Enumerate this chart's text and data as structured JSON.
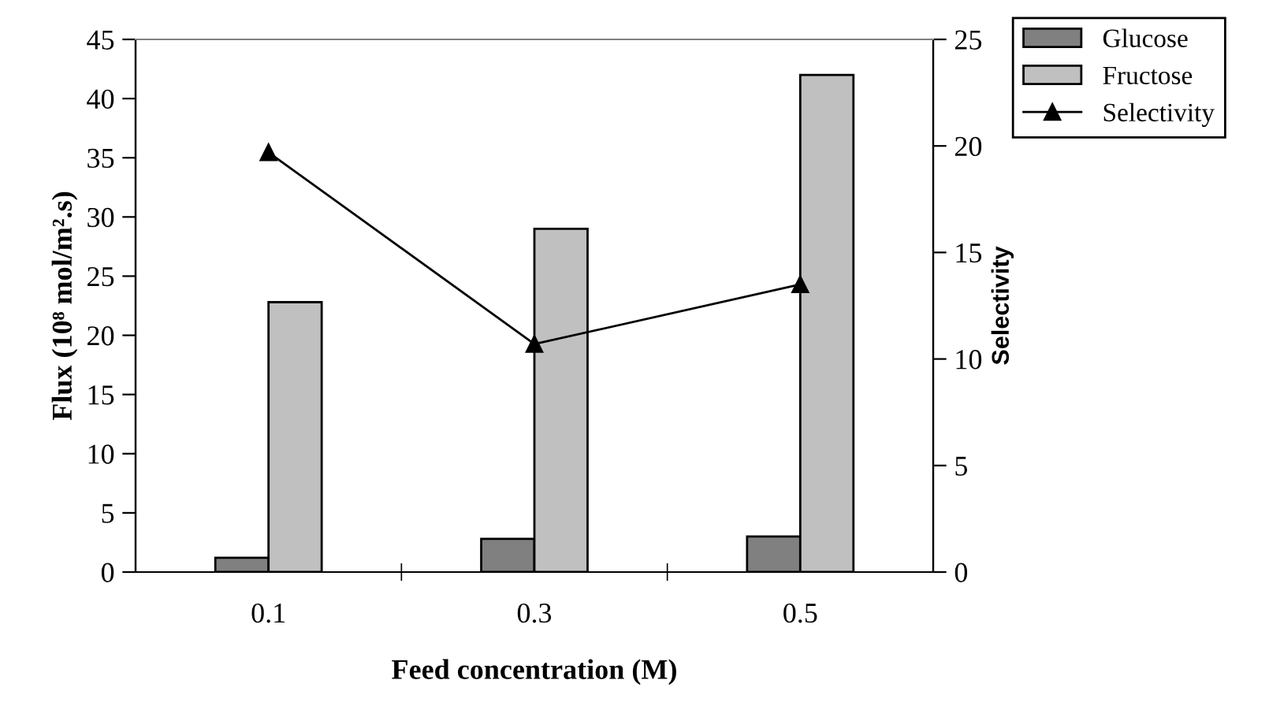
{
  "chart_data": {
    "type": "bar",
    "xlabel": "Feed concentration (M)",
    "ylabel": "Flux (10⁸ mol/m².s)",
    "y2label": "Selectivity",
    "categories": [
      "0.1",
      "0.3",
      "0.5"
    ],
    "series": [
      {
        "name": "Glucose",
        "color": "#808080",
        "values": [
          1.2,
          2.8,
          3.0
        ]
      },
      {
        "name": "Fructose",
        "color": "#c0c0c0",
        "values": [
          22.8,
          29,
          42
        ]
      },
      {
        "name": "Selectivity",
        "type": "line",
        "axis": "y2",
        "color": "#000000",
        "marker": "triangle",
        "values": [
          19.7,
          10.7,
          13.5
        ]
      }
    ],
    "ylim": [
      0,
      45
    ],
    "yticks": [
      0,
      5,
      10,
      15,
      20,
      25,
      30,
      35,
      40,
      45
    ],
    "y2lim": [
      0,
      25
    ],
    "y2ticks": [
      0,
      5,
      10,
      15,
      20,
      25
    ],
    "grid": false,
    "legend": "top right"
  }
}
